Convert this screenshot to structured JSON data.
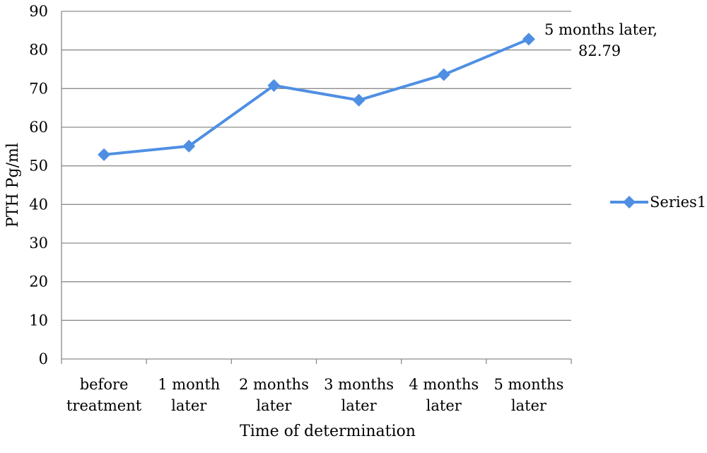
{
  "chart_data": {
    "type": "line",
    "categories": [
      [
        "before",
        "treatment"
      ],
      [
        "1 month",
        "later"
      ],
      [
        "2 months",
        "later"
      ],
      [
        "3 months",
        "later"
      ],
      [
        "4 months",
        "later"
      ],
      [
        "5 months",
        "later"
      ]
    ],
    "series": [
      {
        "name": "Series1",
        "values": [
          52.9,
          55.1,
          70.8,
          67.0,
          73.6,
          82.79
        ],
        "color": "#4F8FE3",
        "marker": "diamond"
      }
    ],
    "xlabel": "Time of determination",
    "ylabel": "PTH Pg/ml",
    "ylim": [
      0,
      90
    ],
    "yticks": [
      0,
      10,
      20,
      30,
      40,
      50,
      60,
      70,
      80,
      90
    ],
    "grid": true,
    "legend": "right",
    "annotations": [
      {
        "index": 5,
        "lines": [
          "5 months later,",
          "82.79"
        ]
      }
    ]
  }
}
